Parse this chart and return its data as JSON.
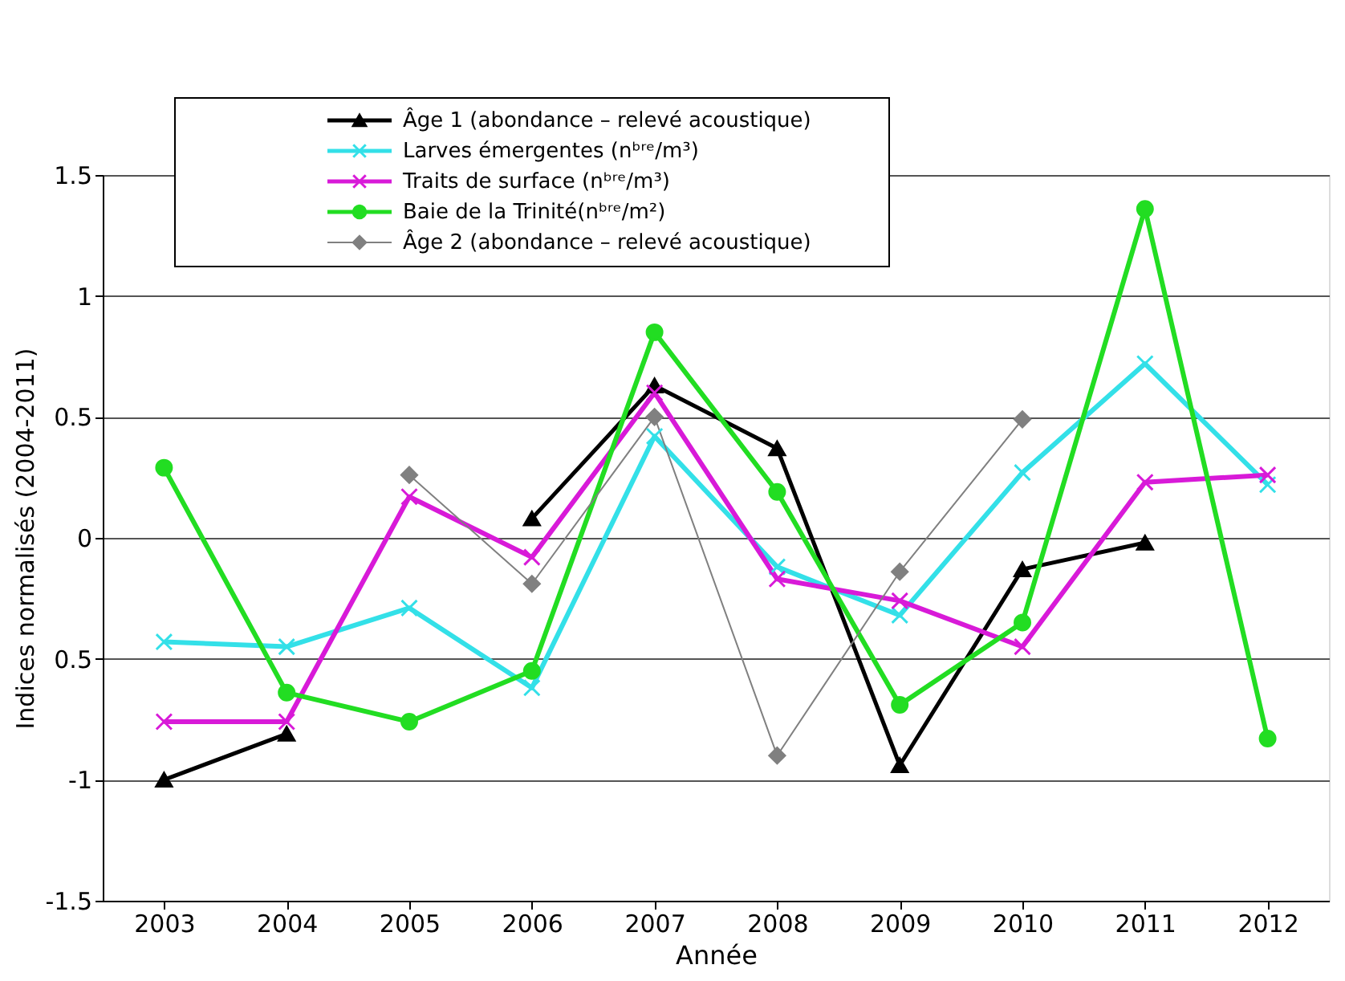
{
  "chart_data": {
    "type": "line",
    "xlabel": "Année",
    "ylabel": "Indices normalisés (2004-2011)",
    "categories": [
      "2003",
      "2004",
      "2005",
      "2006",
      "2007",
      "2008",
      "2009",
      "2010",
      "2011",
      "2012"
    ],
    "series": [
      {
        "name": "Âge 1 (abondance – relevé acoustique)",
        "color": "#000000",
        "marker": "triangle",
        "values": [
          -1.0,
          -0.81,
          null,
          0.08,
          0.63,
          0.37,
          -0.94,
          -0.13,
          -0.02,
          null
        ]
      },
      {
        "name": "Larves émergentes (nᵇʳᵉ/m³)",
        "color": "#33e0e8",
        "marker": "cross",
        "values": [
          -0.43,
          -0.45,
          -0.29,
          -0.62,
          0.42,
          -0.12,
          -0.32,
          0.27,
          0.72,
          0.22
        ]
      },
      {
        "name": "Traits de surface (nᵇʳᵉ/m³)",
        "color": "#d81ad8",
        "marker": "cross",
        "values": [
          -0.76,
          -0.76,
          0.17,
          -0.08,
          0.6,
          -0.17,
          -0.26,
          -0.45,
          0.23,
          0.26
        ]
      },
      {
        "name": "Baie de la Trinité(nᵇʳᵉ/m²)",
        "color": "#22dd22",
        "marker": "circle",
        "values": [
          0.29,
          -0.64,
          -0.76,
          -0.55,
          0.85,
          0.19,
          -0.69,
          -0.35,
          1.36,
          -0.83
        ]
      },
      {
        "name": "Âge 2 (abondance – relevé acoustique)",
        "color": "#808080",
        "marker": "diamond",
        "values": [
          null,
          null,
          0.26,
          -0.19,
          0.5,
          -0.9,
          -0.14,
          0.49,
          null,
          null
        ]
      }
    ],
    "ylim": [
      -1.5,
      1.5
    ],
    "yticks": [
      1.5,
      1,
      0.5,
      0,
      {
        "value": -0.5,
        "label": "0.5"
      },
      -1,
      -1.5
    ],
    "grid": "y",
    "legend": "top"
  }
}
